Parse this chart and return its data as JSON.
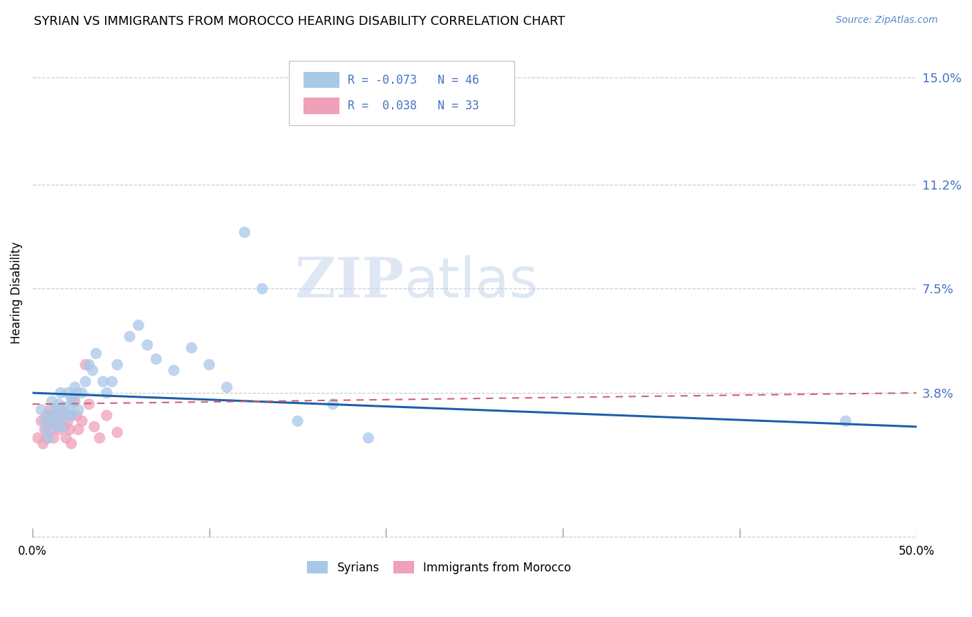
{
  "title": "SYRIAN VS IMMIGRANTS FROM MOROCCO HEARING DISABILITY CORRELATION CHART",
  "source": "Source: ZipAtlas.com",
  "ylabel": "Hearing Disability",
  "ytick_values": [
    0.15,
    0.112,
    0.075,
    0.038
  ],
  "xlim": [
    0.0,
    0.5
  ],
  "ylim": [
    -0.018,
    0.165
  ],
  "syrians_color": "#a8c8e8",
  "morocco_color": "#f0a0b8",
  "trend_syrian_color": "#1a5fa8",
  "trend_morocco_color": "#d06070",
  "legend_R_syrian": "R = -0.073",
  "legend_N_syrian": "N = 46",
  "legend_R_morocco": "R =  0.038",
  "legend_N_morocco": "N = 33",
  "watermark_zip": "ZIP",
  "watermark_atlas": "atlas",
  "syrians_x": [
    0.005,
    0.007,
    0.008,
    0.009,
    0.01,
    0.011,
    0.012,
    0.013,
    0.014,
    0.015,
    0.015,
    0.016,
    0.017,
    0.018,
    0.019,
    0.02,
    0.021,
    0.022,
    0.022,
    0.023,
    0.024,
    0.025,
    0.026,
    0.028,
    0.03,
    0.032,
    0.034,
    0.036,
    0.04,
    0.042,
    0.045,
    0.048,
    0.055,
    0.06,
    0.065,
    0.07,
    0.08,
    0.09,
    0.1,
    0.11,
    0.12,
    0.13,
    0.15,
    0.17,
    0.19,
    0.46
  ],
  "syrians_y": [
    0.032,
    0.028,
    0.025,
    0.022,
    0.03,
    0.035,
    0.028,
    0.032,
    0.026,
    0.034,
    0.03,
    0.038,
    0.026,
    0.033,
    0.03,
    0.038,
    0.032,
    0.036,
    0.03,
    0.035,
    0.04,
    0.038,
    0.032,
    0.038,
    0.042,
    0.048,
    0.046,
    0.052,
    0.042,
    0.038,
    0.042,
    0.048,
    0.058,
    0.062,
    0.055,
    0.05,
    0.046,
    0.054,
    0.048,
    0.04,
    0.095,
    0.075,
    0.028,
    0.034,
    0.022,
    0.028
  ],
  "morocco_x": [
    0.003,
    0.005,
    0.006,
    0.007,
    0.008,
    0.008,
    0.009,
    0.01,
    0.01,
    0.011,
    0.012,
    0.013,
    0.014,
    0.015,
    0.015,
    0.016,
    0.017,
    0.018,
    0.019,
    0.02,
    0.021,
    0.022,
    0.022,
    0.024,
    0.025,
    0.026,
    0.028,
    0.03,
    0.032,
    0.035,
    0.038,
    0.042,
    0.048
  ],
  "morocco_y": [
    0.022,
    0.028,
    0.02,
    0.025,
    0.03,
    0.022,
    0.028,
    0.032,
    0.025,
    0.028,
    0.022,
    0.03,
    0.026,
    0.028,
    0.025,
    0.032,
    0.03,
    0.026,
    0.022,
    0.028,
    0.025,
    0.03,
    0.02,
    0.035,
    0.03,
    0.025,
    0.028,
    0.048,
    0.034,
    0.026,
    0.022,
    0.03,
    0.024
  ],
  "trend_s_x0": 0.0,
  "trend_s_y0": 0.038,
  "trend_s_x1": 0.5,
  "trend_s_y1": 0.026,
  "trend_m_x0": 0.0,
  "trend_m_y0": 0.034,
  "trend_m_x1": 0.5,
  "trend_m_y1": 0.038
}
